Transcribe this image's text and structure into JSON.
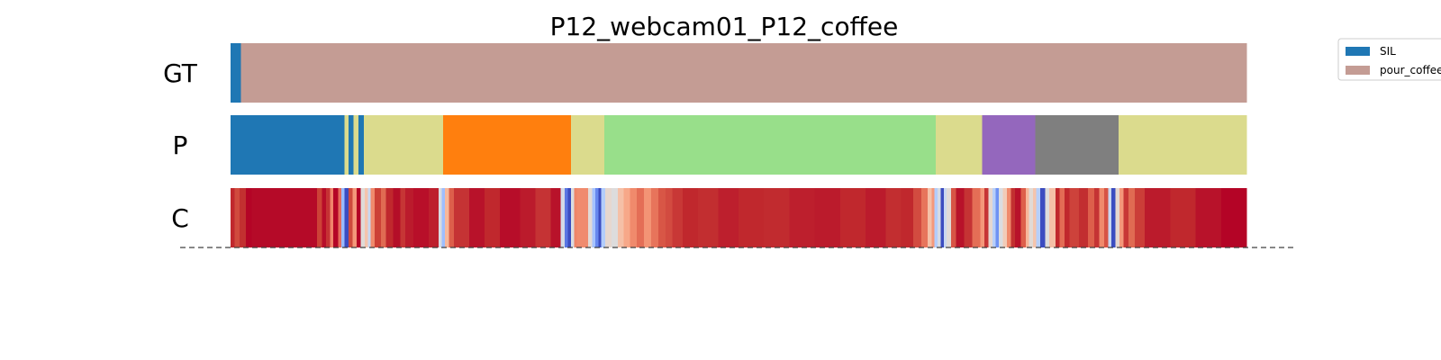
{
  "chart_data": {
    "type": "heatmap",
    "title": "P12_webcam01_P12_coffee",
    "x_range": [
      0,
      1
    ],
    "rows": [
      {
        "label": "GT",
        "segments": [
          {
            "start": 0.0,
            "end": 0.01,
            "color": "#1f77b4"
          },
          {
            "start": 0.01,
            "end": 1.0,
            "color": "#c49c94"
          }
        ]
      },
      {
        "label": "P",
        "segments": [
          {
            "start": 0.0,
            "end": 0.112,
            "color": "#1f77b4"
          },
          {
            "start": 0.112,
            "end": 0.116,
            "color": "#dbdb8d"
          },
          {
            "start": 0.116,
            "end": 0.121,
            "color": "#1f77b4"
          },
          {
            "start": 0.121,
            "end": 0.126,
            "color": "#dbdb8d"
          },
          {
            "start": 0.126,
            "end": 0.131,
            "color": "#1f77b4"
          },
          {
            "start": 0.131,
            "end": 0.209,
            "color": "#dbdb8d"
          },
          {
            "start": 0.209,
            "end": 0.335,
            "color": "#ff7f0e"
          },
          {
            "start": 0.335,
            "end": 0.368,
            "color": "#dbdb8d"
          },
          {
            "start": 0.368,
            "end": 0.694,
            "color": "#98df8a"
          },
          {
            "start": 0.694,
            "end": 0.74,
            "color": "#dbdb8d"
          },
          {
            "start": 0.74,
            "end": 0.792,
            "color": "#9467bd"
          },
          {
            "start": 0.792,
            "end": 0.874,
            "color": "#7f7f7f"
          },
          {
            "start": 0.874,
            "end": 1.0,
            "color": "#dbdb8d"
          }
        ]
      },
      {
        "label": "C",
        "segments": [
          {
            "start": 0.0,
            "end": 0.004,
            "color": "#c0282d"
          },
          {
            "start": 0.004,
            "end": 0.009,
            "color": "#d04a3d"
          },
          {
            "start": 0.009,
            "end": 0.015,
            "color": "#c23030"
          },
          {
            "start": 0.015,
            "end": 0.021,
            "color": "#b40426"
          },
          {
            "start": 0.021,
            "end": 0.085,
            "color": "#b50a28"
          },
          {
            "start": 0.085,
            "end": 0.09,
            "color": "#cc4237"
          },
          {
            "start": 0.09,
            "end": 0.094,
            "color": "#b70d29"
          },
          {
            "start": 0.094,
            "end": 0.098,
            "color": "#c53334"
          },
          {
            "start": 0.098,
            "end": 0.101,
            "color": "#f0826a"
          },
          {
            "start": 0.101,
            "end": 0.106,
            "color": "#b40426"
          },
          {
            "start": 0.106,
            "end": 0.109,
            "color": "#e46b5a"
          },
          {
            "start": 0.109,
            "end": 0.112,
            "color": "#9abbff"
          },
          {
            "start": 0.112,
            "end": 0.116,
            "color": "#3b4cc0"
          },
          {
            "start": 0.116,
            "end": 0.12,
            "color": "#cf4a3c"
          },
          {
            "start": 0.12,
            "end": 0.124,
            "color": "#f4987a"
          },
          {
            "start": 0.124,
            "end": 0.128,
            "color": "#b40426"
          },
          {
            "start": 0.128,
            "end": 0.132,
            "color": "#e0dbd8"
          },
          {
            "start": 0.132,
            "end": 0.135,
            "color": "#f5c4ac"
          },
          {
            "start": 0.135,
            "end": 0.138,
            "color": "#c9d7f0"
          },
          {
            "start": 0.138,
            "end": 0.142,
            "color": "#f08a6c"
          },
          {
            "start": 0.142,
            "end": 0.148,
            "color": "#cc4036"
          },
          {
            "start": 0.148,
            "end": 0.153,
            "color": "#e06b52"
          },
          {
            "start": 0.153,
            "end": 0.16,
            "color": "#c0282d"
          },
          {
            "start": 0.16,
            "end": 0.167,
            "color": "#b40e28"
          },
          {
            "start": 0.167,
            "end": 0.172,
            "color": "#c63535"
          },
          {
            "start": 0.172,
            "end": 0.18,
            "color": "#bb1b2c"
          },
          {
            "start": 0.18,
            "end": 0.195,
            "color": "#b80f29"
          },
          {
            "start": 0.195,
            "end": 0.205,
            "color": "#bd1f2d"
          },
          {
            "start": 0.205,
            "end": 0.208,
            "color": "#d8dce2"
          },
          {
            "start": 0.208,
            "end": 0.211,
            "color": "#9ebeff"
          },
          {
            "start": 0.211,
            "end": 0.215,
            "color": "#f7b79b"
          },
          {
            "start": 0.215,
            "end": 0.22,
            "color": "#dd5f4b"
          },
          {
            "start": 0.22,
            "end": 0.235,
            "color": "#c53334"
          },
          {
            "start": 0.235,
            "end": 0.25,
            "color": "#b8122a"
          },
          {
            "start": 0.25,
            "end": 0.265,
            "color": "#c0282d"
          },
          {
            "start": 0.265,
            "end": 0.285,
            "color": "#b70d29"
          },
          {
            "start": 0.285,
            "end": 0.3,
            "color": "#bb1b2c"
          },
          {
            "start": 0.3,
            "end": 0.315,
            "color": "#c53334"
          },
          {
            "start": 0.315,
            "end": 0.325,
            "color": "#b8122a"
          },
          {
            "start": 0.325,
            "end": 0.329,
            "color": "#d3dbe7"
          },
          {
            "start": 0.329,
            "end": 0.332,
            "color": "#5977e3"
          },
          {
            "start": 0.332,
            "end": 0.335,
            "color": "#3b4cc0"
          },
          {
            "start": 0.335,
            "end": 0.338,
            "color": "#dadce0"
          },
          {
            "start": 0.338,
            "end": 0.341,
            "color": "#ee8468"
          },
          {
            "start": 0.341,
            "end": 0.352,
            "color": "#f08b6e"
          },
          {
            "start": 0.352,
            "end": 0.356,
            "color": "#e2dad5"
          },
          {
            "start": 0.356,
            "end": 0.359,
            "color": "#a5c3fe"
          },
          {
            "start": 0.359,
            "end": 0.362,
            "color": "#6788ee"
          },
          {
            "start": 0.362,
            "end": 0.365,
            "color": "#3b4cc0"
          },
          {
            "start": 0.365,
            "end": 0.369,
            "color": "#b3cdfb"
          },
          {
            "start": 0.369,
            "end": 0.375,
            "color": "#e6d7cf"
          },
          {
            "start": 0.375,
            "end": 0.381,
            "color": "#dddcdc"
          },
          {
            "start": 0.381,
            "end": 0.387,
            "color": "#f5c0a7"
          },
          {
            "start": 0.387,
            "end": 0.393,
            "color": "#f7a889"
          },
          {
            "start": 0.393,
            "end": 0.4,
            "color": "#f08a6c"
          },
          {
            "start": 0.4,
            "end": 0.407,
            "color": "#e46e56"
          },
          {
            "start": 0.407,
            "end": 0.414,
            "color": "#f39475"
          },
          {
            "start": 0.414,
            "end": 0.421,
            "color": "#e7745b"
          },
          {
            "start": 0.421,
            "end": 0.428,
            "color": "#d85646"
          },
          {
            "start": 0.428,
            "end": 0.435,
            "color": "#d24b40"
          },
          {
            "start": 0.435,
            "end": 0.445,
            "color": "#c83836"
          },
          {
            "start": 0.445,
            "end": 0.46,
            "color": "#c0282d"
          },
          {
            "start": 0.46,
            "end": 0.48,
            "color": "#c22e30"
          },
          {
            "start": 0.48,
            "end": 0.5,
            "color": "#bd1f2d"
          },
          {
            "start": 0.5,
            "end": 0.525,
            "color": "#c0282d"
          },
          {
            "start": 0.525,
            "end": 0.55,
            "color": "#c12b2f"
          },
          {
            "start": 0.55,
            "end": 0.575,
            "color": "#bd1f2d"
          },
          {
            "start": 0.575,
            "end": 0.6,
            "color": "#bb1b2c"
          },
          {
            "start": 0.6,
            "end": 0.625,
            "color": "#c0282d"
          },
          {
            "start": 0.625,
            "end": 0.645,
            "color": "#bb1b2c"
          },
          {
            "start": 0.645,
            "end": 0.66,
            "color": "#c22e30"
          },
          {
            "start": 0.66,
            "end": 0.672,
            "color": "#c0282d"
          },
          {
            "start": 0.672,
            "end": 0.68,
            "color": "#d24b40"
          },
          {
            "start": 0.68,
            "end": 0.686,
            "color": "#e7745b"
          },
          {
            "start": 0.686,
            "end": 0.69,
            "color": "#f5c0a7"
          },
          {
            "start": 0.69,
            "end": 0.693,
            "color": "#f4987a"
          },
          {
            "start": 0.693,
            "end": 0.696,
            "color": "#b3cdfb"
          },
          {
            "start": 0.696,
            "end": 0.699,
            "color": "#d5dbe5"
          },
          {
            "start": 0.699,
            "end": 0.702,
            "color": "#3b4cc0"
          },
          {
            "start": 0.702,
            "end": 0.705,
            "color": "#c9d7f0"
          },
          {
            "start": 0.705,
            "end": 0.709,
            "color": "#e0dbd8"
          },
          {
            "start": 0.709,
            "end": 0.714,
            "color": "#d75445"
          },
          {
            "start": 0.714,
            "end": 0.722,
            "color": "#b8122a"
          },
          {
            "start": 0.722,
            "end": 0.73,
            "color": "#c53334"
          },
          {
            "start": 0.73,
            "end": 0.738,
            "color": "#e46e56"
          },
          {
            "start": 0.738,
            "end": 0.742,
            "color": "#f4987a"
          },
          {
            "start": 0.742,
            "end": 0.746,
            "color": "#c63535"
          },
          {
            "start": 0.746,
            "end": 0.75,
            "color": "#e6d7cf"
          },
          {
            "start": 0.75,
            "end": 0.753,
            "color": "#b7cff9"
          },
          {
            "start": 0.753,
            "end": 0.756,
            "color": "#6f92f3"
          },
          {
            "start": 0.756,
            "end": 0.76,
            "color": "#dadce0"
          },
          {
            "start": 0.76,
            "end": 0.764,
            "color": "#f2cbb7"
          },
          {
            "start": 0.764,
            "end": 0.768,
            "color": "#f08a6c"
          },
          {
            "start": 0.768,
            "end": 0.772,
            "color": "#c23030"
          },
          {
            "start": 0.772,
            "end": 0.778,
            "color": "#b8122a"
          },
          {
            "start": 0.778,
            "end": 0.783,
            "color": "#dd5f4b"
          },
          {
            "start": 0.783,
            "end": 0.786,
            "color": "#f7b79b"
          },
          {
            "start": 0.786,
            "end": 0.79,
            "color": "#e2dad5"
          },
          {
            "start": 0.79,
            "end": 0.793,
            "color": "#f5c4ac"
          },
          {
            "start": 0.793,
            "end": 0.797,
            "color": "#b7cff9"
          },
          {
            "start": 0.797,
            "end": 0.802,
            "color": "#3b4cc0"
          },
          {
            "start": 0.802,
            "end": 0.806,
            "color": "#dddcdc"
          },
          {
            "start": 0.806,
            "end": 0.812,
            "color": "#f5c0a7"
          },
          {
            "start": 0.812,
            "end": 0.816,
            "color": "#c0282d"
          },
          {
            "start": 0.816,
            "end": 0.821,
            "color": "#e36c55"
          },
          {
            "start": 0.821,
            "end": 0.826,
            "color": "#c0282d"
          },
          {
            "start": 0.826,
            "end": 0.835,
            "color": "#cd423b"
          },
          {
            "start": 0.835,
            "end": 0.844,
            "color": "#c22e30"
          },
          {
            "start": 0.844,
            "end": 0.85,
            "color": "#dd5f4b"
          },
          {
            "start": 0.85,
            "end": 0.855,
            "color": "#c53334"
          },
          {
            "start": 0.855,
            "end": 0.86,
            "color": "#f08a6c"
          },
          {
            "start": 0.86,
            "end": 0.864,
            "color": "#d75445"
          },
          {
            "start": 0.864,
            "end": 0.867,
            "color": "#c9d7f0"
          },
          {
            "start": 0.867,
            "end": 0.871,
            "color": "#3b4cc0"
          },
          {
            "start": 0.871,
            "end": 0.875,
            "color": "#e6d7cf"
          },
          {
            "start": 0.875,
            "end": 0.879,
            "color": "#f4987a"
          },
          {
            "start": 0.879,
            "end": 0.884,
            "color": "#c83836"
          },
          {
            "start": 0.884,
            "end": 0.89,
            "color": "#e06b52"
          },
          {
            "start": 0.89,
            "end": 0.9,
            "color": "#cb3e38"
          },
          {
            "start": 0.9,
            "end": 0.925,
            "color": "#bb1b2c"
          },
          {
            "start": 0.925,
            "end": 0.95,
            "color": "#c0282d"
          },
          {
            "start": 0.95,
            "end": 0.975,
            "color": "#b8122a"
          },
          {
            "start": 0.975,
            "end": 1.0,
            "color": "#b40426"
          }
        ]
      }
    ],
    "legend": {
      "placement": "top-right",
      "entries": [
        {
          "label": "SIL",
          "color": "#1f77b4"
        },
        {
          "label": "pour_coffee",
          "color": "#c49c94"
        }
      ]
    },
    "grid": false
  }
}
